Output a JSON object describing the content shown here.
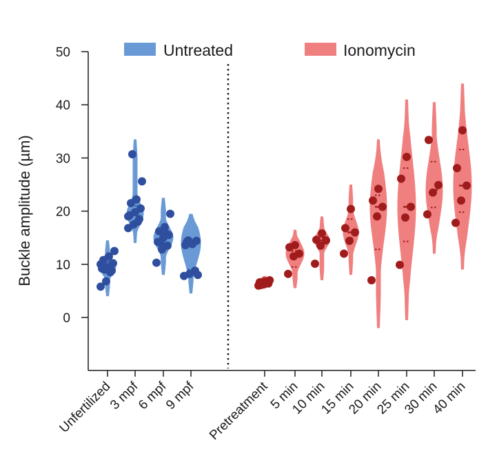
{
  "chart_data": {
    "type": "violin",
    "title": "",
    "xlabel": "",
    "ylabel": "Buckle amplitude (µm)",
    "ylim": [
      -10,
      50
    ],
    "yticks": [
      0,
      10,
      20,
      30,
      40,
      50
    ],
    "grid": false,
    "legend": {
      "placement": "top",
      "entries": [
        {
          "name": "Untreated",
          "color": "#6a9ad6"
        },
        {
          "name": "Ionomycin",
          "color": "#f08080"
        }
      ]
    },
    "divider": "dotted vertical line between untreated and ionomycin groups",
    "groups": [
      {
        "name": "Untreated",
        "violin_color": "#6a9ad6",
        "point_color": "#2f4f9e",
        "categories": [
          {
            "label": "Unfertilized",
            "min": 4,
            "max": 14.5,
            "median": 9.5,
            "q1": 8.5,
            "q3": 10.5,
            "points": [
              5.8,
              6.8,
              8.8,
              9.2,
              9.5,
              10.2,
              10.8,
              11.5,
              12.5,
              9.0,
              8.5,
              10.0
            ]
          },
          {
            "label": "3 mpf",
            "min": 14,
            "max": 33.5,
            "median": 19.5,
            "q1": 18,
            "q3": 21,
            "points": [
              16.8,
              17.5,
              18.5,
              19.2,
              19.8,
              20.5,
              21.5,
              22.2,
              25.6,
              30.7,
              18.0,
              19.0
            ]
          },
          {
            "label": "6 mpf",
            "min": 8,
            "max": 22.5,
            "median": 15,
            "q1": 13.5,
            "q3": 16.5,
            "points": [
              10.3,
              12.8,
              13.5,
              14.2,
              15.0,
              15.5,
              16.2,
              17.0,
              19.5,
              14.0,
              15.8
            ]
          },
          {
            "label": "9 mpf",
            "min": 4.5,
            "max": 19.5,
            "median": 14,
            "q1": 9,
            "q3": 14.5,
            "points": [
              7.8,
              8.2,
              8.8,
              13.6,
              14.0,
              14.4,
              14.2,
              13.8,
              8.0,
              14.5
            ]
          }
        ]
      },
      {
        "name": "Ionomycin",
        "violin_color": "#f08080",
        "point_color": "#a01c1c",
        "categories": [
          {
            "label": "Pretreatment",
            "min": 5.5,
            "max": 7.8,
            "median": 6.5,
            "q1": 6.2,
            "q3": 6.9,
            "points": [
              6.0,
              6.2,
              6.4,
              6.6,
              6.8,
              7.0,
              6.1
            ]
          },
          {
            "label": "5 min",
            "min": 5.5,
            "max": 16.5,
            "median": 12,
            "q1": 9.5,
            "q3": 12.5,
            "points": [
              8.2,
              11.5,
              12.0,
              13.2,
              13.6
            ]
          },
          {
            "label": "10 min",
            "min": 7,
            "max": 19,
            "median": 14.5,
            "q1": 13,
            "q3": 15,
            "points": [
              10.1,
              13.5,
              14.5,
              14.6,
              15.8
            ]
          },
          {
            "label": "15 min",
            "min": 8,
            "max": 25,
            "median": 16,
            "q1": 15,
            "q3": 18.5,
            "points": [
              12.0,
              14.4,
              16.0,
              16.8,
              20.4
            ]
          },
          {
            "label": "20 min",
            "min": -2,
            "max": 33.5,
            "median": 20.8,
            "q1": 12.8,
            "q3": 23,
            "points": [
              7.0,
              19.0,
              20.8,
              22.0,
              24.2
            ]
          },
          {
            "label": "25 min",
            "min": -0.5,
            "max": 41,
            "median": 20.8,
            "q1": 14.3,
            "q3": 28.1,
            "points": [
              9.9,
              18.8,
              20.8,
              26.1,
              30.2
            ]
          },
          {
            "label": "30 min",
            "min": 12,
            "max": 40.5,
            "median": 24,
            "q1": 20.7,
            "q3": 29.3,
            "points": [
              19.4,
              23.5,
              24.9,
              33.4
            ]
          },
          {
            "label": "40 min",
            "min": 9,
            "max": 44,
            "median": 24.8,
            "q1": 19.8,
            "q3": 31.6,
            "points": [
              17.8,
              22.0,
              24.8,
              28.1,
              35.2
            ]
          }
        ]
      }
    ]
  }
}
